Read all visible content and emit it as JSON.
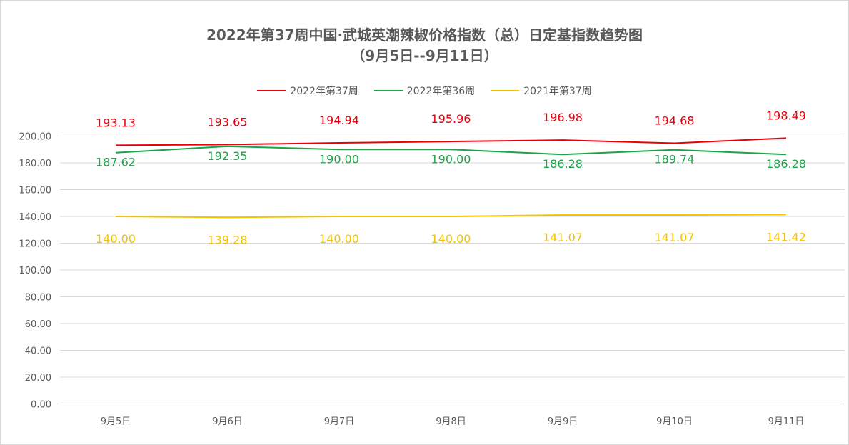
{
  "chart_data": {
    "type": "line",
    "title": "2022年第37周中国·武城英潮辣椒价格指数（总）日定基指数趋势图",
    "subtitle": "（9月5日--9月11日）",
    "xlabel": "",
    "ylabel": "",
    "categories": [
      "9月5日",
      "9月6日",
      "9月7日",
      "9月8日",
      "9月9日",
      "9月10日",
      "9月11日"
    ],
    "ylim": [
      0,
      200
    ],
    "ytick_step": 20,
    "ytick_labels": [
      "0.00",
      "20.00",
      "40.00",
      "60.00",
      "80.00",
      "100.00",
      "120.00",
      "140.00",
      "160.00",
      "180.00",
      "200.00"
    ],
    "grid": "horizontal",
    "legend_position": "top",
    "series": [
      {
        "name": "2022年第37周",
        "color": "#e8000b",
        "values": [
          193.13,
          193.65,
          194.94,
          195.96,
          196.98,
          194.68,
          198.49
        ],
        "labels": [
          "193.13",
          "193.65",
          "194.94",
          "195.96",
          "196.98",
          "194.68",
          "198.49"
        ],
        "label_position": "above"
      },
      {
        "name": "2022年第36周",
        "color": "#1aa548",
        "values": [
          187.62,
          192.35,
          190.0,
          190.0,
          186.28,
          189.74,
          186.28
        ],
        "labels": [
          "187.62",
          "192.35",
          "190.00",
          "190.00",
          "186.28",
          "189.74",
          "186.28"
        ],
        "label_position": "below"
      },
      {
        "name": "2021年第37周",
        "color": "#f5c200",
        "values": [
          140.0,
          139.28,
          140.0,
          140.0,
          141.07,
          141.07,
          141.42
        ],
        "labels": [
          "140.00",
          "139.28",
          "140.00",
          "140.00",
          "141.07",
          "141.07",
          "141.42"
        ],
        "label_position": "below"
      }
    ]
  }
}
